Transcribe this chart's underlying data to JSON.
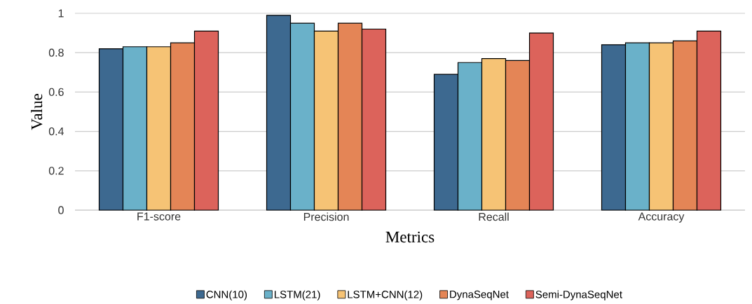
{
  "chart_data": {
    "type": "bar",
    "xlabel": "Metrics",
    "ylabel": "Value",
    "categories": [
      "F1-score",
      "Precision",
      "Recall",
      "Accuracy"
    ],
    "series": [
      {
        "name": "CNN(10)",
        "color": "#3d6990",
        "values": [
          0.82,
          0.99,
          0.69,
          0.84
        ]
      },
      {
        "name": "LSTM(21)",
        "color": "#6ab1c9",
        "values": [
          0.83,
          0.95,
          0.75,
          0.85
        ]
      },
      {
        "name": "LSTM+CNN(12)",
        "color": "#f6c375",
        "values": [
          0.83,
          0.91,
          0.77,
          0.85
        ]
      },
      {
        "name": "DynaSeqNet",
        "color": "#e48556",
        "values": [
          0.85,
          0.95,
          0.76,
          0.86
        ]
      },
      {
        "name": "Semi-DynaSeqNet",
        "color": "#dc635b",
        "values": [
          0.91,
          0.92,
          0.9,
          0.91
        ]
      }
    ],
    "ylim": [
      0,
      1
    ],
    "yticks": [
      0,
      0.2,
      0.4,
      0.6,
      0.8,
      1
    ],
    "grid": "y",
    "legend": "bottom"
  }
}
